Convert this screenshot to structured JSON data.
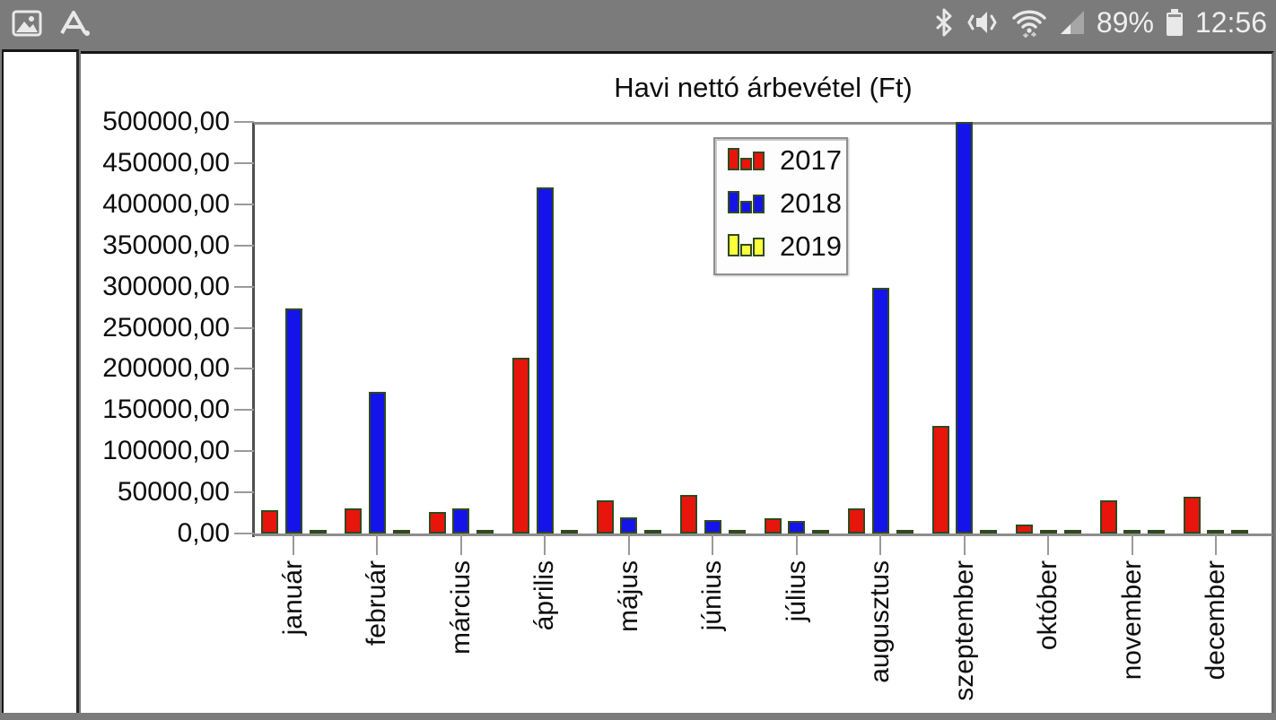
{
  "status_bar": {
    "battery_percent": "89%",
    "time": "12:56",
    "left_icons": [
      "gallery-icon",
      "a-dot-app-icon"
    ],
    "right_icons": [
      "bluetooth-icon",
      "mute-vibrate-icon",
      "wifi-icon",
      "cell-signal-icon",
      "battery-icon"
    ]
  },
  "chart_data": {
    "type": "bar",
    "title": "Havi nettó árbevétel (Ft)",
    "categories": [
      "január",
      "február",
      "március",
      "április",
      "május",
      "június",
      "július",
      "augusztus",
      "szeptember",
      "október",
      "november",
      "december"
    ],
    "series": [
      {
        "name": "2017",
        "color": "#e8150d",
        "values": [
          28000,
          31000,
          26000,
          214000,
          40000,
          47000,
          18000,
          30000,
          131000,
          11000,
          40000,
          45000
        ]
      },
      {
        "name": "2018",
        "color": "#1413ea",
        "values": [
          273000,
          172000,
          30000,
          421000,
          20000,
          16000,
          15000,
          298000,
          500000,
          2500,
          2500,
          2500
        ]
      },
      {
        "name": "2019",
        "color": "#ffff3c",
        "values": [
          2500,
          2500,
          2500,
          2500,
          2500,
          2500,
          2500,
          2500,
          2500,
          2500,
          2500,
          2500
        ]
      }
    ],
    "ylim": [
      0,
      500000
    ],
    "ytick_step": 50000,
    "ytick_labels": [
      "500000,00",
      "450000,00",
      "400000,00",
      "350000,00",
      "300000,00",
      "250000,00",
      "200000,00",
      "150000,00",
      "100000,00",
      "50000,00",
      "0,00"
    ],
    "xlabel": "",
    "ylabel": "",
    "legend_position": "top-center-inside",
    "grid": "top-line-only",
    "bar_outline_color": "#2f4a1f"
  }
}
